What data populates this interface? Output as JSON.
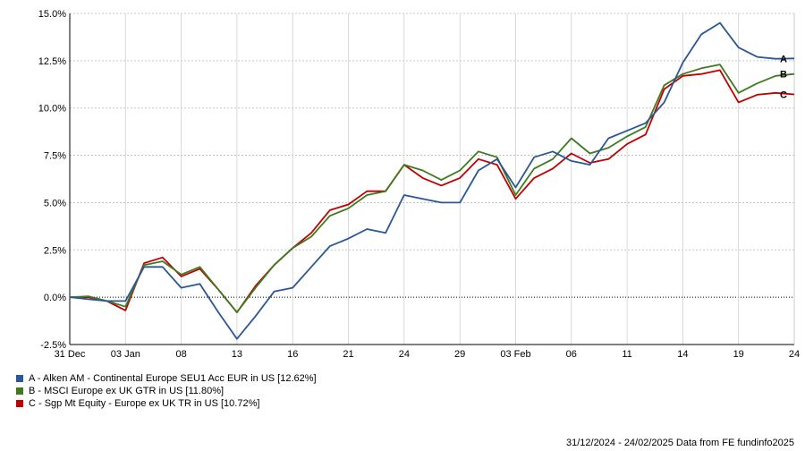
{
  "chart_data": {
    "type": "line",
    "ylim": [
      -2.5,
      15.0
    ],
    "yticks": [
      "-2.5%",
      "0.0%",
      "2.5%",
      "5.0%",
      "7.5%",
      "10.0%",
      "12.5%",
      "15.0%"
    ],
    "ytick_values": [
      -2.5,
      0,
      2.5,
      5,
      7.5,
      10,
      12.5,
      15
    ],
    "xticks": [
      {
        "label": "31 Dec",
        "idx": 0
      },
      {
        "label": "03 Jan",
        "idx": 3
      },
      {
        "label": "08",
        "idx": 6
      },
      {
        "label": "13",
        "idx": 9
      },
      {
        "label": "16",
        "idx": 12
      },
      {
        "label": "21",
        "idx": 15
      },
      {
        "label": "24",
        "idx": 18
      },
      {
        "label": "29",
        "idx": 21
      },
      {
        "label": "03 Feb",
        "idx": 24
      },
      {
        "label": "06",
        "idx": 27
      },
      {
        "label": "11",
        "idx": 30
      },
      {
        "label": "14",
        "idx": 33
      },
      {
        "label": "19",
        "idx": 36
      },
      {
        "label": "24",
        "idx": 39
      }
    ],
    "n_points": 40,
    "grid": true,
    "zero_line": true,
    "series": [
      {
        "name": "A - Alken AM - Continental Europe SEU1 Acc EUR in US [12.62%]",
        "end_label": "A",
        "color": "#2b5797",
        "values": [
          0.0,
          -0.1,
          -0.2,
          -0.2,
          1.6,
          1.6,
          0.5,
          0.7,
          -0.8,
          -2.2,
          -1.0,
          0.3,
          0.5,
          1.6,
          2.7,
          3.1,
          3.6,
          3.4,
          5.4,
          5.2,
          5.0,
          5.0,
          6.7,
          7.3,
          5.8,
          7.4,
          7.7,
          7.2,
          7.0,
          8.4,
          8.8,
          9.2,
          10.3,
          12.4,
          13.9,
          14.5,
          13.2,
          12.7,
          12.6,
          12.62
        ]
      },
      {
        "name": "B - MSCI Europe ex UK GTR in US [11.80%]",
        "end_label": "B",
        "color": "#3f7a1f",
        "values": [
          0.0,
          0.05,
          -0.2,
          -0.5,
          1.7,
          1.9,
          1.2,
          1.6,
          0.4,
          -0.8,
          0.5,
          1.7,
          2.6,
          3.2,
          4.3,
          4.7,
          5.4,
          5.6,
          7.0,
          6.7,
          6.2,
          6.7,
          7.7,
          7.4,
          5.4,
          6.8,
          7.3,
          8.4,
          7.6,
          7.9,
          8.5,
          9.0,
          11.2,
          11.8,
          12.1,
          12.3,
          10.8,
          11.3,
          11.7,
          11.8
        ]
      },
      {
        "name": "C - Sgp Mt Equity - Europe ex UK TR in US [10.72%]",
        "end_label": "C",
        "color": "#c00000",
        "values": [
          0.0,
          0.0,
          -0.2,
          -0.7,
          1.8,
          2.1,
          1.1,
          1.5,
          0.4,
          -0.8,
          0.6,
          1.7,
          2.6,
          3.4,
          4.6,
          4.9,
          5.6,
          5.6,
          7.0,
          6.3,
          5.9,
          6.3,
          7.3,
          7.0,
          5.2,
          6.3,
          6.8,
          7.6,
          7.1,
          7.3,
          8.1,
          8.6,
          11.0,
          11.7,
          11.8,
          12.0,
          10.3,
          10.7,
          10.8,
          10.72
        ]
      }
    ]
  },
  "footer": {
    "text": "31/12/2024 - 24/02/2025 Data from FE fundinfo2025"
  }
}
